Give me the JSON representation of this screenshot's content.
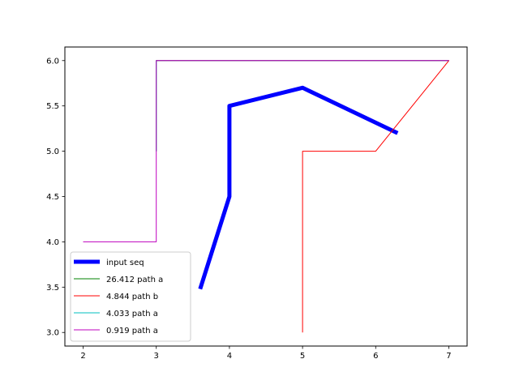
{
  "chart_data": {
    "type": "line",
    "title": "",
    "xlabel": "",
    "ylabel": "",
    "xlim": [
      1.75,
      7.25
    ],
    "ylim": [
      2.85,
      6.15
    ],
    "x_ticks": [
      2,
      3,
      4,
      5,
      6,
      7
    ],
    "y_ticks": [
      3.0,
      3.5,
      4.0,
      4.5,
      5.0,
      5.5,
      6.0
    ],
    "x_tick_labels": [
      "2",
      "3",
      "4",
      "5",
      "6",
      "7"
    ],
    "y_tick_labels": [
      "3.0",
      "3.5",
      "4.0",
      "4.5",
      "5.0",
      "5.5",
      "6.0"
    ],
    "grid": false,
    "legend_position": "lower-left",
    "series": [
      {
        "name": "input seq",
        "color": "#0000ff",
        "linewidth": 5,
        "x": [
          3.6,
          4.0,
          4.0,
          5.0,
          6.3
        ],
        "y": [
          3.48,
          4.5,
          5.5,
          5.7,
          5.2
        ]
      },
      {
        "name": "26.412 path a",
        "color": "#008000",
        "linewidth": 1,
        "x": [
          3.0,
          3.0,
          7.0
        ],
        "y": [
          5.0,
          6.0,
          6.0
        ]
      },
      {
        "name": "4.844 path b",
        "color": "#ff0000",
        "linewidth": 1,
        "x": [
          5.0,
          5.0,
          6.0,
          7.0,
          3.0
        ],
        "y": [
          3.0,
          5.0,
          5.0,
          6.0,
          6.0
        ]
      },
      {
        "name": "4.033 path a",
        "color": "#00bfbf",
        "linewidth": 1,
        "x": [
          3.0,
          3.0,
          7.0
        ],
        "y": [
          5.0,
          6.0,
          6.0
        ]
      },
      {
        "name": "0.919 path a",
        "color": "#bf00bf",
        "linewidth": 1,
        "x": [
          2.0,
          3.0,
          3.0,
          7.0
        ],
        "y": [
          4.0,
          4.0,
          6.0,
          6.0
        ]
      }
    ]
  }
}
